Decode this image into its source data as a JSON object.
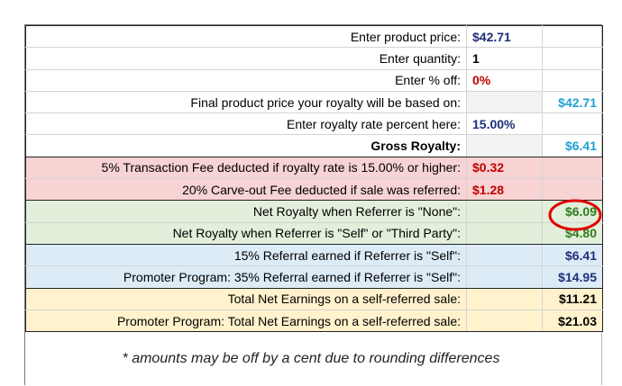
{
  "sheet": {
    "rows": [
      {
        "label": "Enter product price:",
        "value": "$42.71"
      },
      {
        "label": "Enter quantity:",
        "value": "1"
      },
      {
        "label": "Enter % off:",
        "value": "0%"
      },
      {
        "label": "Final product price your royalty will be based on:",
        "value": "$42.71"
      },
      {
        "label": "Enter royalty rate percent here:",
        "value": "15.00%"
      },
      {
        "label": "Gross Royalty:",
        "value": "$6.41"
      },
      {
        "label": "5% Transaction Fee deducted if royalty rate is 15.00% or higher:",
        "value": "$0.32"
      },
      {
        "label": "20% Carve-out Fee deducted if sale was referred:",
        "value": "$1.28"
      },
      {
        "label": "Net Royalty when Referrer is \"None\":",
        "value": "$6.09"
      },
      {
        "label": "Net Royalty when Referrer is \"Self\" or \"Third Party\":",
        "value": "$4.80"
      },
      {
        "label": "15% Referral earned if Referrer is \"Self\":",
        "value": "$6.41"
      },
      {
        "label": "Promoter Program: 35% Referral earned if Referrer is \"Self\":",
        "value": "$14.95"
      },
      {
        "label": "Total Net Earnings on a self-referred sale:",
        "value": "$11.21"
      },
      {
        "label": "Promoter Program: Total Net Earnings on a self-referred sale:",
        "value": "$21.03"
      }
    ]
  },
  "footnote": "* amounts may be off by a cent due to rounding differences"
}
